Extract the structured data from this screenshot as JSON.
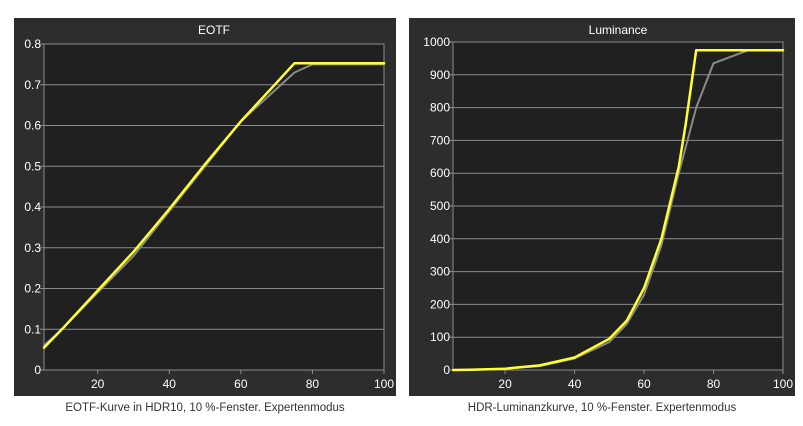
{
  "charts": [
    {
      "title": "EOTF",
      "caption": "EOTF-Kurve in HDR10, 10 %-Fenster. Expertenmodus",
      "colors": {
        "panel": "#2d2d2d",
        "plot": "#202020",
        "grid": "#8c8c8c",
        "measured": "#ffff33",
        "target": "#8a8a8a",
        "text": "#ffffff"
      }
    },
    {
      "title": "Luminance",
      "caption": "HDR-Luminanzkurve, 10 %-Fenster. Expertenmodus",
      "colors": {
        "panel": "#2d2d2d",
        "plot": "#202020",
        "grid": "#8c8c8c",
        "measured": "#ffff33",
        "target": "#8a8a8a",
        "text": "#ffffff"
      }
    }
  ],
  "chart_data": [
    {
      "type": "line",
      "title": "EOTF",
      "xlim": [
        5,
        100
      ],
      "ylim": [
        0,
        0.8
      ],
      "xticks": [
        20,
        40,
        60,
        80,
        100
      ],
      "yticks": [
        0,
        0.1,
        0.2,
        0.3,
        0.4,
        0.5,
        0.6,
        0.7,
        0.8
      ],
      "ytick_labels": [
        "0",
        "0.1",
        "0.2",
        "0.3",
        "0.4",
        "0.5",
        "0.6",
        "0.7",
        "0.8"
      ],
      "grid": true,
      "series": [
        {
          "color": "#8a8a8a",
          "x": [
            5,
            10,
            20,
            30,
            40,
            50,
            60,
            70,
            75,
            80,
            90,
            100
          ],
          "y": [
            0.06,
            0.1,
            0.19,
            0.28,
            0.39,
            0.5,
            0.61,
            0.69,
            0.73,
            0.75,
            0.75,
            0.75
          ]
        },
        {
          "color": "#ffff33",
          "x": [
            5,
            10,
            20,
            30,
            40,
            50,
            60,
            70,
            75,
            100
          ],
          "y": [
            0.055,
            0.1,
            0.195,
            0.29,
            0.395,
            0.505,
            0.61,
            0.705,
            0.753,
            0.753
          ]
        }
      ]
    },
    {
      "type": "line",
      "title": "Luminance",
      "xlim": [
        5,
        100
      ],
      "ylim": [
        0,
        1000
      ],
      "xticks": [
        20,
        40,
        60,
        80,
        100
      ],
      "yticks": [
        0,
        100,
        200,
        300,
        400,
        500,
        600,
        700,
        800,
        900,
        1000
      ],
      "ytick_labels": [
        "0",
        "100",
        "200",
        "300",
        "400",
        "500",
        "600",
        "700",
        "800",
        "900",
        "1000"
      ],
      "grid": true,
      "series": [
        {
          "color": "#8a8a8a",
          "x": [
            5,
            10,
            20,
            30,
            40,
            50,
            55,
            60,
            65,
            70,
            75,
            80,
            90,
            100
          ],
          "y": [
            0,
            1,
            4,
            12,
            35,
            85,
            140,
            230,
            380,
            600,
            800,
            935,
            975,
            975
          ]
        },
        {
          "color": "#ffff33",
          "x": [
            5,
            10,
            20,
            30,
            40,
            50,
            55,
            60,
            65,
            70,
            72,
            75,
            100
          ],
          "y": [
            0,
            1,
            4,
            14,
            38,
            95,
            150,
            250,
            400,
            620,
            750,
            975,
            975
          ]
        }
      ]
    }
  ]
}
